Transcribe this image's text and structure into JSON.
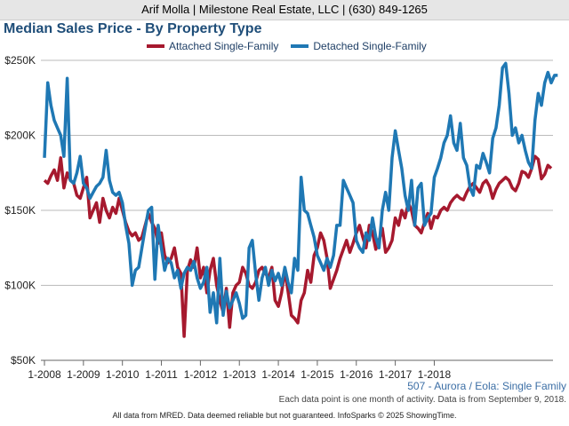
{
  "header": {
    "text": "Arif Molla | Milestone Real Estate, LLC | (630) 849-1265"
  },
  "chart_data": {
    "type": "line",
    "title": "Median Sales Price - By Property Type",
    "y_ticks": [
      "$50K",
      "$100K",
      "$150K",
      "$200K",
      "$250K"
    ],
    "y_tick_values": [
      50000,
      100000,
      150000,
      200000,
      250000
    ],
    "ylim": [
      50000,
      250000
    ],
    "x_ticks": [
      "1-2008",
      "1-2009",
      "1-2010",
      "1-2011",
      "1-2012",
      "1-2013",
      "1-2014",
      "1-2015",
      "1-2016",
      "1-2017",
      "1-2018"
    ],
    "x_start": "1-2008",
    "x_end": "9-2018",
    "grid": true,
    "legend_position": "top",
    "series": [
      {
        "name": "Attached Single-Family",
        "color": "#a6192e",
        "values": [
          170000,
          168000,
          173000,
          177000,
          170000,
          185000,
          165000,
          175000,
          170000,
          168000,
          160000,
          158000,
          165000,
          172000,
          145000,
          150000,
          155000,
          142000,
          158000,
          150000,
          145000,
          152000,
          148000,
          158000,
          150000,
          142000,
          136000,
          133000,
          135000,
          130000,
          132000,
          140000,
          148000,
          142000,
          138000,
          128000,
          135000,
          120000,
          115000,
          118000,
          125000,
          112000,
          108000,
          66000,
          110000,
          117000,
          112000,
          125000,
          105000,
          112000,
          95000,
          110000,
          118000,
          100000,
          90000,
          82000,
          98000,
          72000,
          95000,
          100000,
          102000,
          112000,
          108000,
          100000,
          98000,
          102000,
          110000,
          112000,
          108000,
          105000,
          112000,
          90000,
          86000,
          95000,
          110000,
          96000,
          80000,
          78000,
          75000,
          90000,
          95000,
          110000,
          102000,
          120000,
          125000,
          135000,
          130000,
          118000,
          98000,
          104000,
          110000,
          118000,
          124000,
          130000,
          122000,
          128000,
          135000,
          140000,
          132000,
          125000,
          140000,
          135000,
          124000,
          130000,
          138000,
          122000,
          125000,
          130000,
          145000,
          140000,
          150000,
          145000,
          155000,
          150000,
          140000,
          138000,
          135000,
          142000,
          148000,
          138000,
          146000,
          145000,
          150000,
          152000,
          150000,
          155000,
          158000,
          160000,
          158000,
          157000,
          162000,
          166000,
          168000,
          165000,
          162000,
          168000,
          170000,
          166000,
          158000,
          164000,
          168000,
          170000,
          172000,
          170000,
          165000,
          163000,
          168000,
          176000,
          175000,
          172000,
          178000,
          186000,
          184000,
          171000,
          174000,
          180000,
          178000
        ],
        "values_note": "monthly medians"
      },
      {
        "name": "Detached Single-Family",
        "color": "#1f78b4",
        "values": [
          185000,
          235000,
          220000,
          210000,
          205000,
          200000,
          186000,
          238000,
          170000,
          168000,
          175000,
          186000,
          168000,
          165000,
          158000,
          162000,
          166000,
          168000,
          172000,
          190000,
          170000,
          162000,
          160000,
          162000,
          155000,
          140000,
          128000,
          100000,
          110000,
          112000,
          125000,
          138000,
          150000,
          152000,
          104000,
          140000,
          125000,
          110000,
          118000,
          115000,
          105000,
          110000,
          98000,
          108000,
          112000,
          110000,
          116000,
          105000,
          98000,
          102000,
          112000,
          82000,
          95000,
          75000,
          118000,
          80000,
          96000,
          85000,
          90000,
          95000,
          88000,
          78000,
          80000,
          125000,
          130000,
          108000,
          90000,
          105000,
          112000,
          100000,
          110000,
          103000,
          108000,
          100000,
          112000,
          102000,
          95000,
          118000,
          110000,
          172000,
          150000,
          148000,
          140000,
          132000,
          120000,
          115000,
          110000,
          118000,
          112000,
          120000,
          140000,
          140000,
          170000,
          165000,
          160000,
          155000,
          130000,
          125000,
          122000,
          135000,
          130000,
          145000,
          132000,
          125000,
          150000,
          162000,
          150000,
          185000,
          203000,
          190000,
          178000,
          160000,
          150000,
          170000,
          140000,
          165000,
          168000,
          140000,
          145000,
          148000,
          172000,
          178000,
          185000,
          195000,
          200000,
          213000,
          195000,
          190000,
          208000,
          185000,
          180000,
          165000,
          160000,
          180000,
          178000,
          188000,
          182000,
          175000,
          198000,
          205000,
          220000,
          245000,
          248000,
          228000,
          200000,
          205000,
          195000,
          200000,
          190000,
          182000,
          178000,
          210000,
          228000,
          220000,
          235000,
          242000,
          235000,
          240000,
          240000
        ]
      }
    ],
    "footer_subtitle": "507 - Aurora / Eola: Single Family",
    "footer_note": "Each data point is one month of activity. Data is from September 9, 2018.",
    "disclaimer": "All data from MRED. Data deemed reliable but not guaranteed. InfoSparks © 2025 ShowingTime."
  }
}
